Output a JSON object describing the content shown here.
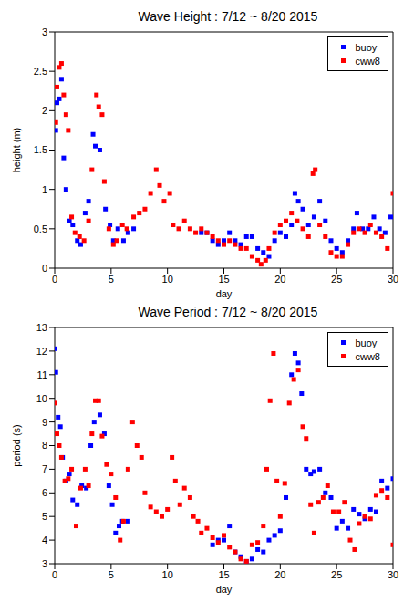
{
  "chart_data": [
    {
      "type": "scatter",
      "title": "Wave Height : 7/12 ~ 8/20 2015",
      "x_label": "day",
      "y_label": "height (m)",
      "xlim": [
        0,
        30
      ],
      "xticks": [
        0,
        5,
        10,
        15,
        20,
        25,
        30
      ],
      "ylim": [
        0,
        3
      ],
      "yticks": [
        0,
        0.5,
        1,
        1.5,
        2,
        2.5,
        3
      ],
      "grid": false,
      "legend": "upper right",
      "series": [
        {
          "name": "buoy",
          "color": "#0000ff",
          "marker": "square",
          "x": [
            0.1,
            0.2,
            0.4,
            0.6,
            0.8,
            1.0,
            1.3,
            1.6,
            2.0,
            2.3,
            2.7,
            3.0,
            3.4,
            3.6,
            4.0,
            4.5,
            4.9,
            5.2,
            5.6,
            6.1,
            6.5,
            7.0,
            13.0,
            13.5,
            14.0,
            14.5,
            15.0,
            15.5,
            16.0,
            16.5,
            17.0,
            17.5,
            18.0,
            18.5,
            19.0,
            19.5,
            20.0,
            20.5,
            21.0,
            21.3,
            21.6,
            22.0,
            22.5,
            23.0,
            23.5,
            24.0,
            24.5,
            25.0,
            25.5,
            26.0,
            26.5,
            26.8,
            27.3,
            27.8,
            28.3,
            28.8,
            29.3,
            29.8
          ],
          "values": [
            1.75,
            2.1,
            2.15,
            2.4,
            1.4,
            1.0,
            0.6,
            0.55,
            0.35,
            0.3,
            0.7,
            0.85,
            1.7,
            1.55,
            1.5,
            0.75,
            0.55,
            0.35,
            0.5,
            0.35,
            0.45,
            0.5,
            0.45,
            0.45,
            0.35,
            0.3,
            0.35,
            0.45,
            0.35,
            0.3,
            0.4,
            0.4,
            0.25,
            0.2,
            0.15,
            0.35,
            0.45,
            0.4,
            0.55,
            0.95,
            0.85,
            0.75,
            0.55,
            0.65,
            0.85,
            0.6,
            0.35,
            0.25,
            0.2,
            0.35,
            0.5,
            0.7,
            0.5,
            0.5,
            0.65,
            0.5,
            0.45,
            0.65
          ]
        },
        {
          "name": "cww8",
          "color": "#ff0000",
          "marker": "square",
          "x": [
            0.1,
            0.2,
            0.4,
            0.6,
            0.8,
            1.0,
            1.2,
            1.5,
            1.8,
            2.2,
            2.6,
            3.0,
            3.3,
            3.7,
            3.9,
            4.2,
            4.4,
            4.8,
            5.2,
            5.5,
            6.0,
            6.4,
            7.0,
            7.5,
            8.0,
            8.5,
            9.0,
            9.3,
            9.7,
            10.2,
            10.5,
            11.0,
            11.5,
            12.0,
            12.5,
            13.0,
            13.5,
            14.0,
            14.5,
            15.0,
            15.5,
            16.0,
            16.5,
            17.0,
            17.5,
            18.0,
            18.3,
            18.7,
            19.0,
            19.5,
            20.0,
            20.5,
            21.0,
            21.5,
            22.0,
            22.5,
            22.9,
            23.1,
            23.5,
            24.0,
            24.5,
            25.0,
            25.5,
            26.0,
            26.5,
            27.0,
            27.5,
            28.0,
            28.5,
            29.0,
            29.5,
            30.0
          ],
          "values": [
            1.85,
            2.3,
            2.55,
            2.6,
            2.2,
            1.95,
            1.75,
            0.65,
            0.45,
            0.4,
            0.35,
            0.6,
            1.25,
            2.2,
            2.05,
            1.95,
            1.1,
            0.5,
            0.3,
            0.35,
            0.55,
            0.5,
            0.65,
            0.7,
            0.75,
            0.95,
            1.25,
            1.05,
            0.85,
            0.95,
            0.55,
            0.5,
            0.6,
            0.5,
            0.45,
            0.5,
            0.45,
            0.4,
            0.35,
            0.3,
            0.35,
            0.3,
            0.25,
            0.25,
            0.15,
            0.1,
            0.05,
            0.1,
            0.25,
            0.45,
            0.55,
            0.6,
            0.7,
            0.6,
            0.5,
            0.4,
            1.2,
            1.25,
            0.55,
            0.4,
            0.2,
            0.15,
            0.15,
            0.3,
            0.45,
            0.5,
            0.45,
            0.55,
            0.45,
            0.4,
            0.25,
            0.95
          ]
        }
      ]
    },
    {
      "type": "scatter",
      "title": "Wave Period : 7/12 ~ 8/20 2015",
      "x_label": "day",
      "y_label": "period (s)",
      "xlim": [
        0,
        30
      ],
      "xticks": [
        0,
        5,
        10,
        15,
        20,
        25,
        30
      ],
      "ylim": [
        3,
        13
      ],
      "yticks": [
        3,
        4,
        5,
        6,
        7,
        8,
        9,
        10,
        11,
        12,
        13
      ],
      "grid": false,
      "legend": "upper right",
      "series": [
        {
          "name": "buoy",
          "color": "#0000ff",
          "marker": "square",
          "x": [
            0,
            0.1,
            0.3,
            0.5,
            0.7,
            1.0,
            1.3,
            1.6,
            2.0,
            2.4,
            2.8,
            3.2,
            3.5,
            4.0,
            4.4,
            4.8,
            5.1,
            5.4,
            5.7,
            6.0,
            6.5,
            14.0,
            14.5,
            15.0,
            15.5,
            16.0,
            16.5,
            17.0,
            17.5,
            18.0,
            18.5,
            19.0,
            19.5,
            20.0,
            20.5,
            21.0,
            21.3,
            21.6,
            21.9,
            22.3,
            22.7,
            23.0,
            23.5,
            24.0,
            24.5,
            25.0,
            25.5,
            26.0,
            26.5,
            27.0,
            27.5,
            28.0,
            28.5,
            29.0,
            29.5,
            30.0
          ],
          "values": [
            12.1,
            11.1,
            9.2,
            8.8,
            7.5,
            6.5,
            6.8,
            5.7,
            5.5,
            6.3,
            6.2,
            8.0,
            9.0,
            9.3,
            8.5,
            6.3,
            5.5,
            4.3,
            4.6,
            4.8,
            4.8,
            3.8,
            4.0,
            4.0,
            4.6,
            3.5,
            3.3,
            3.1,
            3.2,
            3.6,
            3.5,
            4.0,
            4.2,
            4.4,
            5.8,
            11.0,
            11.9,
            11.5,
            10.2,
            7.0,
            6.8,
            6.9,
            7.0,
            6.0,
            5.8,
            4.5,
            4.8,
            4.5,
            5.3,
            5.1,
            4.9,
            5.3,
            5.2,
            6.5,
            6.2,
            6.6
          ]
        },
        {
          "name": "cww8",
          "color": "#ff0000",
          "marker": "square",
          "x": [
            0,
            0.2,
            0.4,
            0.6,
            0.9,
            1.2,
            1.5,
            1.9,
            2.3,
            2.7,
            3.0,
            3.3,
            3.6,
            3.9,
            4.2,
            4.6,
            5.0,
            5.4,
            5.8,
            6.1,
            6.5,
            6.9,
            7.3,
            7.7,
            8.0,
            8.5,
            9.0,
            9.5,
            10.0,
            10.4,
            10.7,
            11.1,
            11.5,
            12.0,
            12.3,
            12.7,
            13.0,
            13.5,
            14.0,
            14.5,
            15.0,
            15.5,
            16.0,
            16.5,
            17.0,
            17.5,
            18.0,
            18.5,
            18.8,
            19.1,
            19.4,
            19.7,
            20.0,
            20.4,
            20.8,
            21.2,
            21.6,
            22.0,
            22.3,
            22.7,
            23.0,
            23.4,
            23.8,
            24.2,
            24.7,
            25.2,
            25.7,
            26.2,
            26.6,
            27.0,
            27.5,
            28.0,
            28.5,
            29.0,
            29.5,
            30.0
          ],
          "values": [
            9.8,
            8.5,
            8.0,
            7.5,
            6.5,
            6.6,
            7.0,
            4.6,
            6.2,
            7.0,
            6.3,
            8.5,
            9.9,
            9.9,
            8.4,
            7.2,
            6.8,
            5.8,
            4.0,
            4.8,
            7.0,
            9.0,
            8.0,
            7.5,
            6.0,
            5.4,
            5.2,
            5.0,
            5.3,
            7.5,
            6.5,
            5.5,
            6.2,
            5.8,
            5.0,
            4.8,
            4.3,
            4.5,
            4.1,
            3.9,
            4.2,
            3.7,
            3.5,
            3.2,
            3.1,
            3.8,
            3.9,
            4.6,
            7.0,
            9.9,
            11.9,
            6.5,
            5.0,
            6.4,
            9.8,
            10.8,
            11.2,
            8.8,
            8.3,
            5.5,
            4.3,
            5.6,
            5.8,
            6.3,
            5.2,
            5.2,
            5.6,
            4.0,
            3.6,
            4.7,
            5.0,
            4.9,
            5.9,
            6.1,
            5.8,
            3.8
          ]
        }
      ]
    }
  ]
}
